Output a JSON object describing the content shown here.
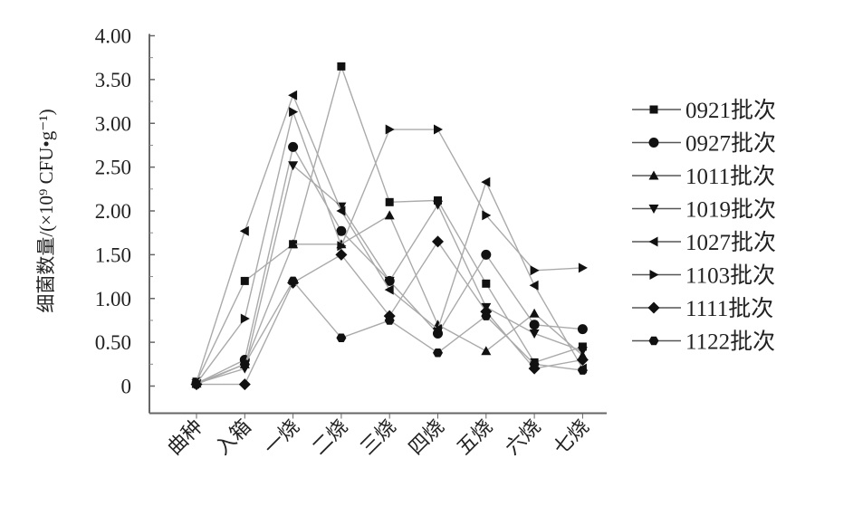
{
  "chart_data": {
    "type": "line",
    "title": "",
    "xlabel": "",
    "ylabel": "细菌数量/(×10⁹ CFU•g⁻¹)",
    "ylim": [
      0,
      4
    ],
    "yticks": [
      "0",
      "0.50",
      "1.00",
      "1.50",
      "2.00",
      "2.50",
      "3.00",
      "3.50",
      "4.00"
    ],
    "categories": [
      "曲种",
      "入箱",
      "一烧",
      "二烧",
      "三烧",
      "四烧",
      "五烧",
      "六烧",
      "七烧"
    ],
    "grid": false,
    "legend": "right",
    "series": [
      {
        "name": "0921批次",
        "marker": "square",
        "values": [
          0.05,
          1.2,
          1.62,
          3.65,
          2.1,
          2.12,
          1.17,
          0.27,
          0.45
        ]
      },
      {
        "name": "0927批次",
        "marker": "circle",
        "values": [
          0.03,
          0.3,
          2.73,
          1.77,
          1.2,
          0.6,
          1.5,
          0.7,
          0.65
        ]
      },
      {
        "name": "1011批次",
        "marker": "triangle-up",
        "values": [
          0.03,
          0.25,
          1.62,
          1.62,
          1.95,
          0.7,
          0.4,
          0.83,
          0.35
        ]
      },
      {
        "name": "1019批次",
        "marker": "triangle-down",
        "values": [
          0.03,
          0.2,
          2.52,
          2.05,
          1.2,
          2.07,
          0.9,
          0.6,
          0.4
        ]
      },
      {
        "name": "1027批次",
        "marker": "triangle-left",
        "values": [
          0.05,
          1.77,
          3.32,
          2.0,
          1.1,
          0.65,
          2.33,
          1.15,
          0.2
        ]
      },
      {
        "name": "1103批次",
        "marker": "triangle-right",
        "values": [
          0.03,
          0.77,
          3.13,
          1.6,
          2.93,
          2.93,
          1.95,
          1.32,
          1.35
        ]
      },
      {
        "name": "1111批次",
        "marker": "diamond",
        "values": [
          0.02,
          0.02,
          1.18,
          1.5,
          0.8,
          1.65,
          0.85,
          0.2,
          0.3
        ]
      },
      {
        "name": "1122批次",
        "marker": "hexagon",
        "values": [
          0.02,
          0.25,
          1.2,
          0.55,
          0.75,
          0.38,
          0.8,
          0.25,
          0.18
        ]
      }
    ]
  }
}
